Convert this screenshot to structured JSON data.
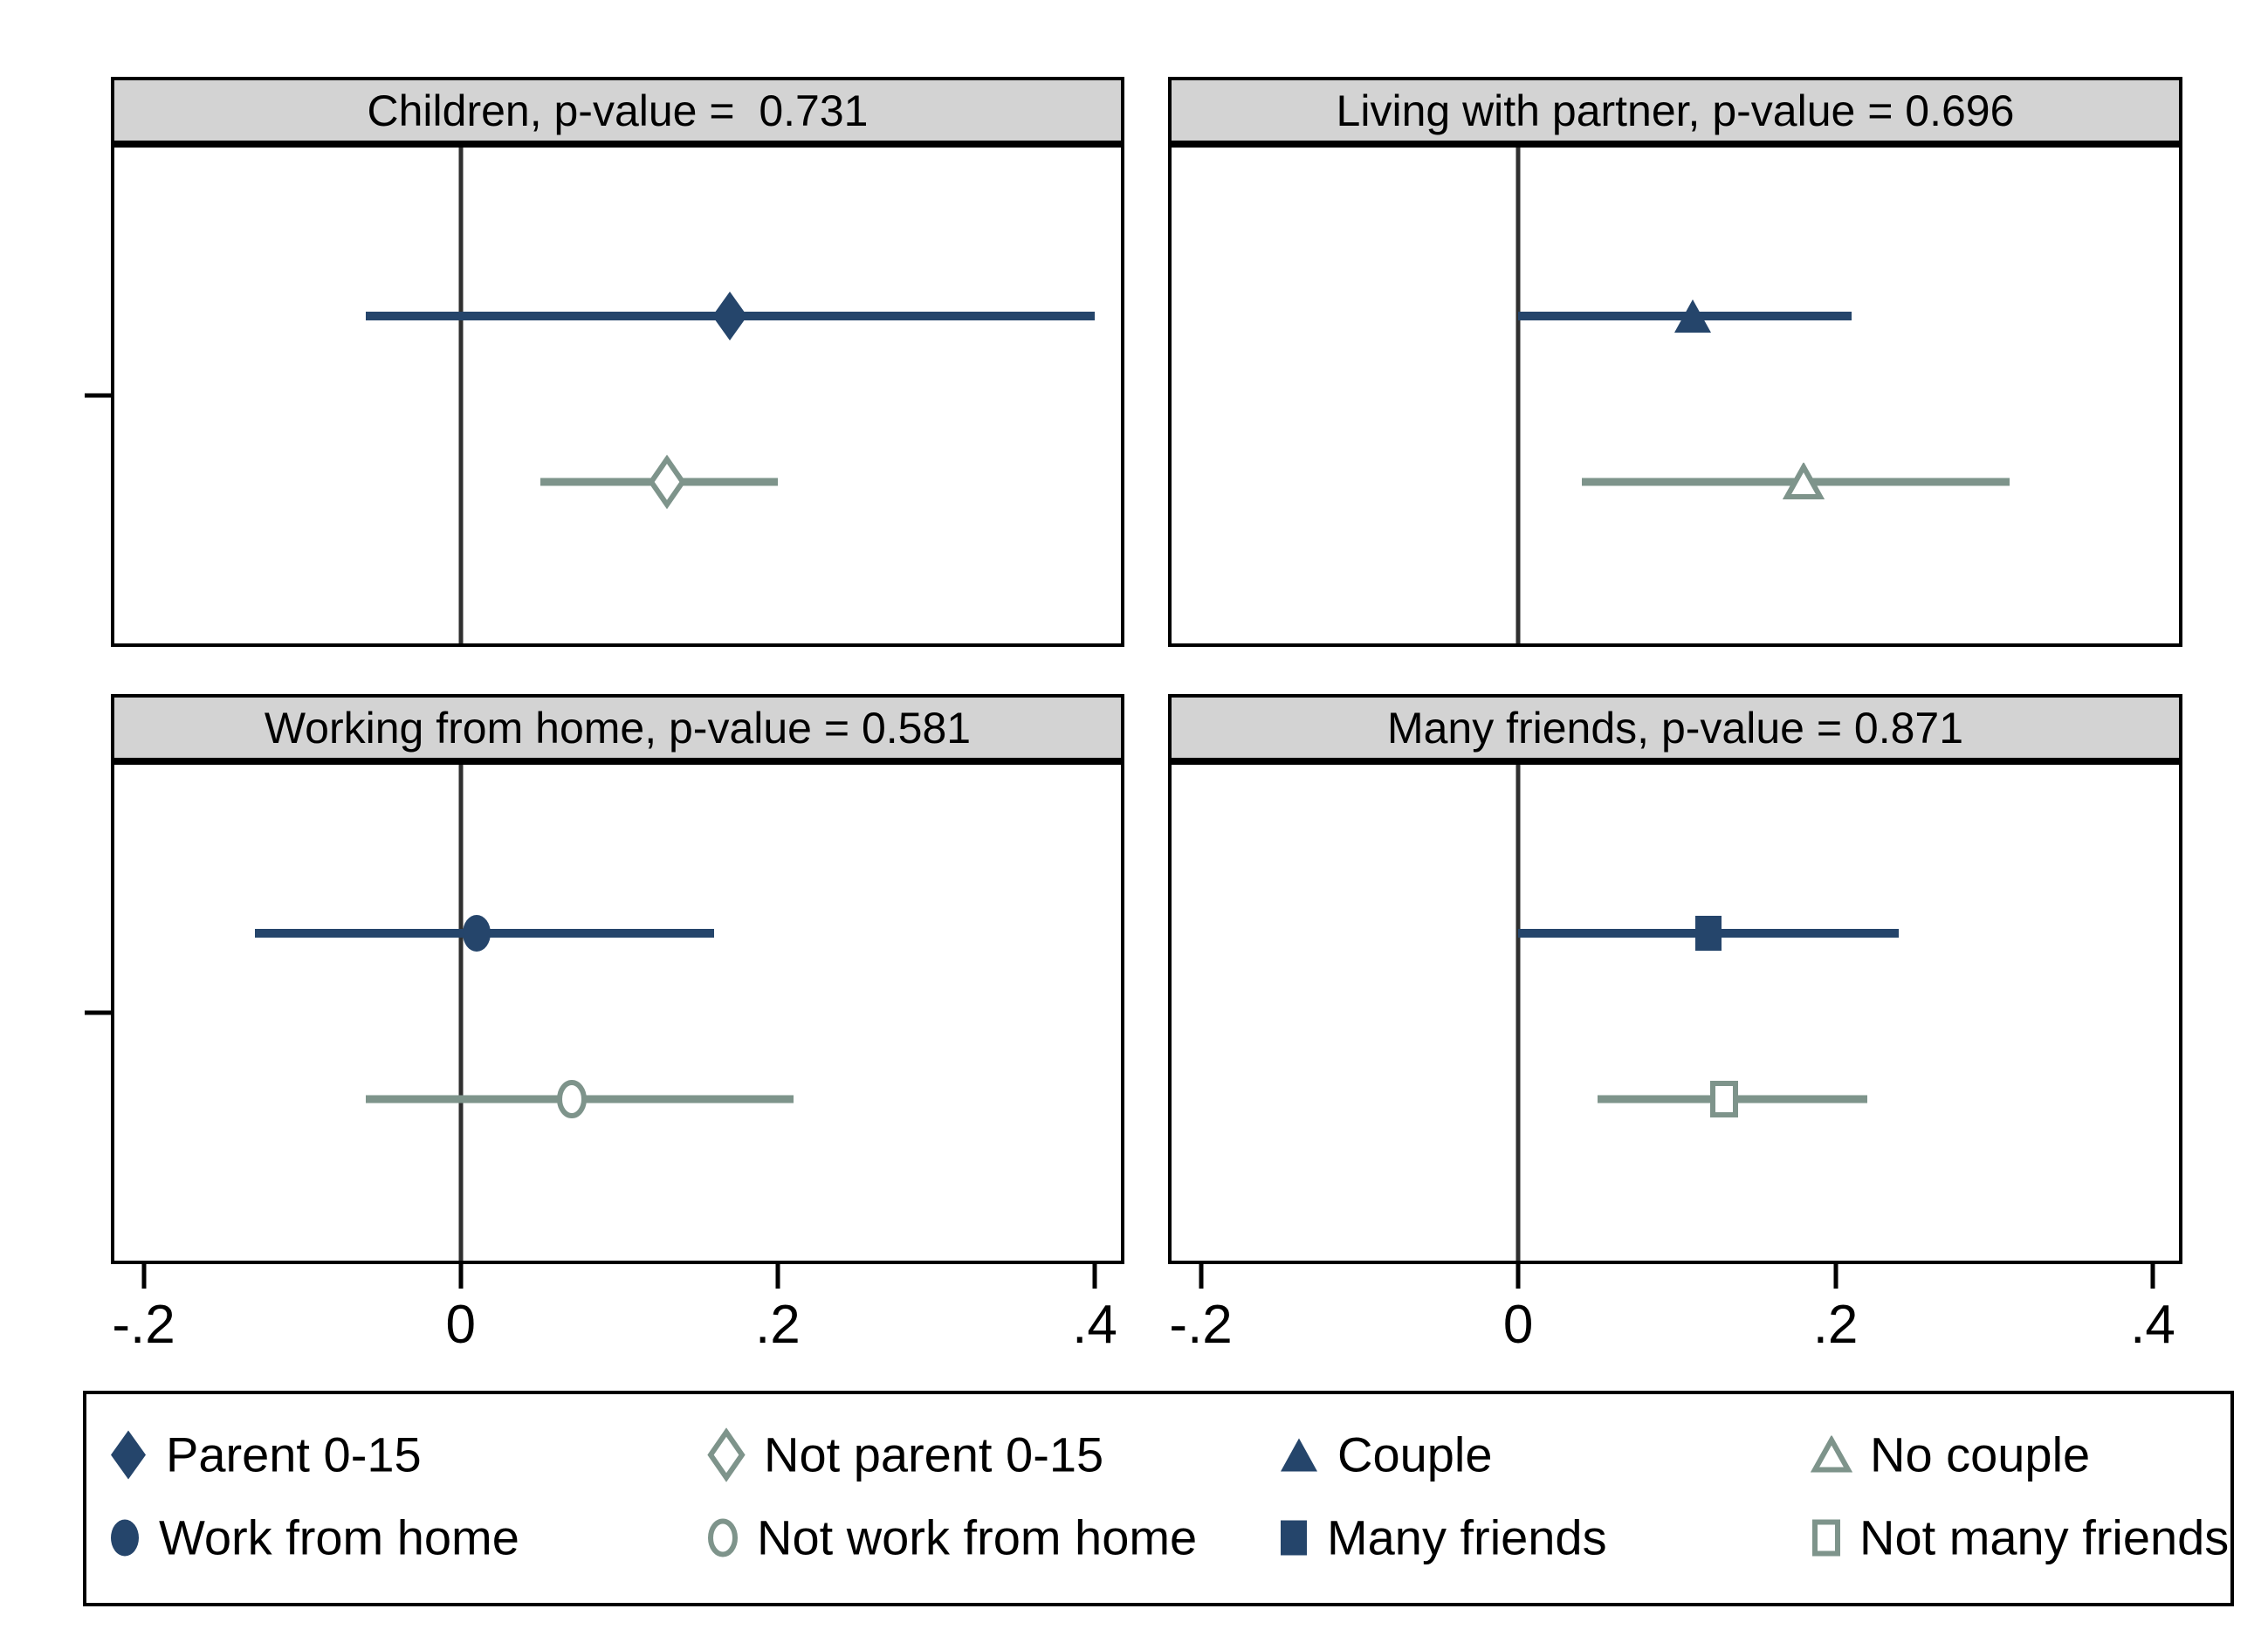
{
  "chart_data": {
    "type": "scatter",
    "description": "Four-panel horizontal coefficient (forest) plot with 95% confidence intervals and a vertical zero reference line in each panel",
    "x_axis": {
      "min": -0.2185,
      "max": 0.4165,
      "zero_reference_line": 0,
      "ticks": [
        {
          "label": "-.2",
          "value": -0.2
        },
        {
          "label": "0",
          "value": 0
        },
        {
          "label": ".2",
          "value": 0.2
        },
        {
          "label": ".4",
          "value": 0.4
        }
      ]
    },
    "panels": [
      {
        "id": "children",
        "title": "Children, p-value =  0.731",
        "p_value": 0.731,
        "series": [
          {
            "label": "Parent 0-15",
            "marker": "diamond",
            "filled": true,
            "color": "#25456b",
            "estimate": 0.17,
            "ci_low": -0.06,
            "ci_high": 0.4
          },
          {
            "label": "Not parent 0-15",
            "marker": "diamond",
            "filled": false,
            "color": "#7e948b",
            "estimate": 0.13,
            "ci_low": 0.05,
            "ci_high": 0.2
          }
        ]
      },
      {
        "id": "living-with-partner",
        "title": "Living with partner, p-value = 0.696",
        "p_value": 0.696,
        "series": [
          {
            "label": "Couple",
            "marker": "triangle",
            "filled": true,
            "color": "#25456b",
            "estimate": 0.11,
            "ci_low": 0.0,
            "ci_high": 0.21
          },
          {
            "label": "No couple",
            "marker": "triangle",
            "filled": false,
            "color": "#7e948b",
            "estimate": 0.18,
            "ci_low": 0.04,
            "ci_high": 0.31
          }
        ]
      },
      {
        "id": "working-from-home",
        "title": "Working from home, p-value = 0.581",
        "p_value": 0.581,
        "series": [
          {
            "label": "Work from home",
            "marker": "circle",
            "filled": true,
            "color": "#25456b",
            "estimate": 0.01,
            "ci_low": -0.13,
            "ci_high": 0.16
          },
          {
            "label": "Not work from home",
            "marker": "circle",
            "filled": false,
            "color": "#7e948b",
            "estimate": 0.07,
            "ci_low": -0.06,
            "ci_high": 0.21
          }
        ]
      },
      {
        "id": "many-friends",
        "title": "Many friends, p-value = 0.871",
        "p_value": 0.871,
        "series": [
          {
            "label": "Many friends",
            "marker": "square",
            "filled": true,
            "color": "#25456b",
            "estimate": 0.12,
            "ci_low": 0.0,
            "ci_high": 0.24
          },
          {
            "label": "Not many friends",
            "marker": "square",
            "filled": false,
            "color": "#7e948b",
            "estimate": 0.13,
            "ci_low": 0.05,
            "ci_high": 0.22
          }
        ]
      }
    ],
    "legend": {
      "position": "bottom",
      "rows": 2,
      "columns": 4,
      "items": [
        {
          "label": "Parent 0-15",
          "marker": "diamond",
          "filled": true,
          "color": "#25456b"
        },
        {
          "label": "Not parent 0-15",
          "marker": "diamond",
          "filled": false,
          "color": "#7e948b"
        },
        {
          "label": "Couple",
          "marker": "triangle",
          "filled": true,
          "color": "#25456b"
        },
        {
          "label": "No couple",
          "marker": "triangle",
          "filled": false,
          "color": "#7e948b"
        },
        {
          "label": "Work from home",
          "marker": "circle",
          "filled": true,
          "color": "#25456b"
        },
        {
          "label": "Not work from home",
          "marker": "circle",
          "filled": false,
          "color": "#7e948b"
        },
        {
          "label": "Many friends",
          "marker": "square",
          "filled": true,
          "color": "#25456b"
        },
        {
          "label": "Not many friends",
          "marker": "square",
          "filled": false,
          "color": "#7e948b"
        }
      ]
    },
    "colors": {
      "filled_series": "#25456b",
      "open_series": "#7e948b",
      "header_background": "#d3d3d3",
      "panel_border": "#000000",
      "zero_line": "#2f2f2f",
      "background": "#ffffff"
    },
    "grid": false
  }
}
